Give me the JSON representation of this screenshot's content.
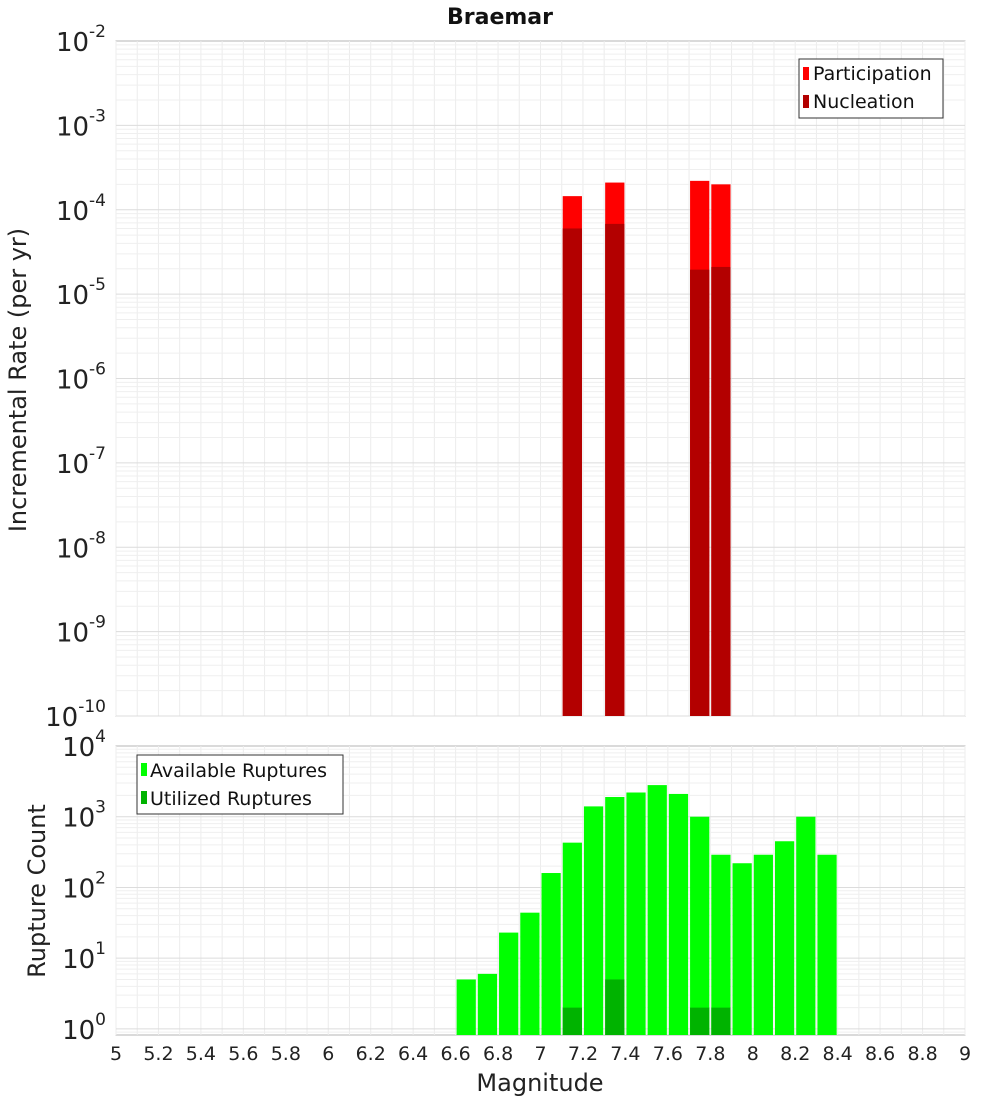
{
  "chart_data": [
    {
      "type": "bar",
      "title": "Braemar",
      "xlabel": "",
      "ylabel": "Incremental Rate (per yr)",
      "yscale": "log",
      "ylim": [
        1e-10,
        0.01
      ],
      "xlim": [
        5,
        9
      ],
      "y_ticks": [
        {
          "base": "10",
          "exp": "-10"
        },
        {
          "base": "10",
          "exp": "-9"
        },
        {
          "base": "10",
          "exp": "-8"
        },
        {
          "base": "10",
          "exp": "-7"
        },
        {
          "base": "10",
          "exp": "-6"
        },
        {
          "base": "10",
          "exp": "-5"
        },
        {
          "base": "10",
          "exp": "-4"
        },
        {
          "base": "10",
          "exp": "-3"
        },
        {
          "base": "10",
          "exp": "-2"
        }
      ],
      "legend_position": "top-right",
      "grid": true,
      "series": [
        {
          "name": "Participation",
          "color": "#ff0000",
          "x": [
            7.15,
            7.35,
            7.75,
            7.85
          ],
          "values": [
            0.000145,
            0.00021,
            0.00022,
            0.0002
          ]
        },
        {
          "name": "Nucleation",
          "color": "#b30000",
          "x": [
            7.15,
            7.35,
            7.75,
            7.85
          ],
          "values": [
            6e-05,
            6.8e-05,
            1.95e-05,
            2.1e-05
          ]
        }
      ]
    },
    {
      "type": "bar",
      "title": "",
      "xlabel": "Magnitude",
      "ylabel": "Rupture Count",
      "yscale": "log",
      "ylim": [
        0.82,
        10000
      ],
      "xlim": [
        5,
        9
      ],
      "y_ticks": [
        {
          "base": "10",
          "exp": "0"
        },
        {
          "base": "10",
          "exp": "1"
        },
        {
          "base": "10",
          "exp": "2"
        },
        {
          "base": "10",
          "exp": "3"
        },
        {
          "base": "10",
          "exp": "4"
        }
      ],
      "x_ticks": [
        "5",
        "5.2",
        "5.4",
        "5.6",
        "5.8",
        "6",
        "6.2",
        "6.4",
        "6.6",
        "6.8",
        "7",
        "7.2",
        "7.4",
        "7.6",
        "7.8",
        "8",
        "8.2",
        "8.4",
        "8.6",
        "8.8",
        "9"
      ],
      "legend_position": "top-left",
      "grid": true,
      "series": [
        {
          "name": "Available Ruptures",
          "color": "#00ff00",
          "x": [
            6.65,
            6.75,
            6.85,
            6.95,
            7.05,
            7.15,
            7.25,
            7.35,
            7.45,
            7.55,
            7.65,
            7.75,
            7.85,
            7.95,
            8.05,
            8.15,
            8.25,
            8.35
          ],
          "values": [
            5,
            6,
            23,
            44,
            160,
            430,
            1400,
            1900,
            2200,
            2800,
            2100,
            1000,
            290,
            220,
            290,
            450,
            1000,
            290
          ]
        },
        {
          "name": "Utilized Ruptures",
          "color": "#00b300",
          "x": [
            7.15,
            7.35,
            7.75,
            7.85
          ],
          "values": [
            2,
            5,
            2,
            2
          ]
        }
      ]
    }
  ]
}
